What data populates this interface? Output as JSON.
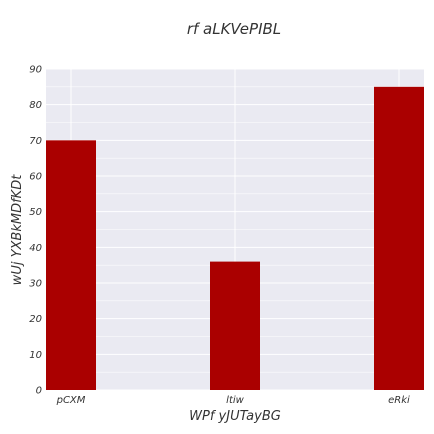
{
  "chart_data": {
    "type": "bar",
    "title": "rf aLKVePIBL",
    "xlabel": "WPf  yJUTayBG",
    "ylabel": "wUj YXBkMDfKDt",
    "categories": [
      "pCXM",
      "ltiw",
      "eRki"
    ],
    "values": [
      70,
      36,
      85
    ],
    "ylim": [
      0,
      90
    ],
    "yticks": [
      0,
      10,
      20,
      30,
      40,
      50,
      60,
      70,
      80,
      90
    ],
    "grid": true,
    "bar_color": "#aa0000",
    "plot_background": "#eaeaf2",
    "grid_color": "#ffffff"
  }
}
